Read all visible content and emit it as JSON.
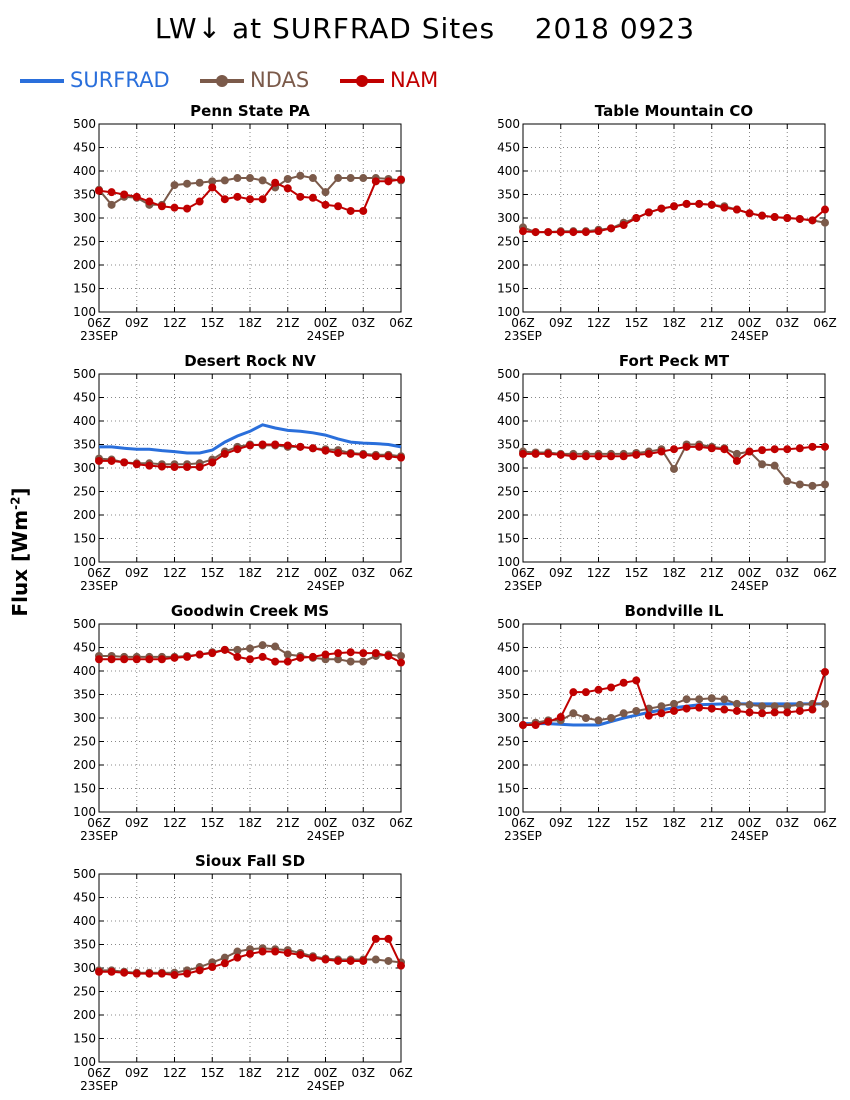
{
  "header": {
    "title": "LW↓ at SURFRAD Sites    2018 0923",
    "ylabel": "Flux [Wm",
    "ylabel_exp": "-2",
    "ylabel_close": "]"
  },
  "legend": [
    {
      "name": "SURFRAD",
      "color": "#2a6fdb"
    },
    {
      "name": "NDAS",
      "color": "#7b5a4a"
    },
    {
      "name": "NAM",
      "color": "#c00000"
    }
  ],
  "axes": {
    "yticks": [
      "100",
      "150",
      "200",
      "250",
      "300",
      "350",
      "400",
      "450",
      "500"
    ],
    "xticks": [
      "06Z",
      "09Z",
      "12Z",
      "15Z",
      "18Z",
      "21Z",
      "00Z",
      "03Z",
      "06Z"
    ],
    "xsublabels": [
      {
        "text": "23SEP",
        "tick": 0
      },
      {
        "text": "24SEP",
        "tick": 6
      }
    ]
  },
  "chart_data": [
    {
      "type": "line",
      "title": "Penn State PA",
      "ylim": [
        100,
        500
      ],
      "xlim": [
        0,
        24
      ],
      "grid": true,
      "series": [
        {
          "name": "NDAS",
          "x": [
            0,
            1,
            2,
            3,
            4,
            5,
            6,
            7,
            8,
            9,
            10,
            11,
            12,
            13,
            14,
            15,
            16,
            17,
            18,
            19,
            20,
            21,
            22,
            23,
            24
          ],
          "values": [
            360,
            328,
            345,
            343,
            328,
            328,
            370,
            373,
            375,
            378,
            380,
            385,
            385,
            380,
            365,
            383,
            390,
            385,
            355,
            385,
            385,
            385,
            385,
            383,
            380
          ]
        },
        {
          "name": "NAM",
          "x": [
            0,
            1,
            2,
            3,
            4,
            5,
            6,
            7,
            8,
            9,
            10,
            11,
            12,
            13,
            14,
            15,
            16,
            17,
            18,
            19,
            20,
            21,
            22,
            23,
            24
          ],
          "values": [
            358,
            355,
            350,
            345,
            335,
            325,
            322,
            320,
            335,
            365,
            340,
            345,
            340,
            340,
            375,
            363,
            345,
            343,
            328,
            325,
            315,
            315,
            378,
            378,
            382
          ]
        }
      ]
    },
    {
      "type": "line",
      "title": "Table Mountain CO",
      "ylim": [
        100,
        500
      ],
      "xlim": [
        0,
        24
      ],
      "grid": true,
      "series": [
        {
          "name": "NDAS",
          "x": [
            0,
            1,
            2,
            3,
            4,
            5,
            6,
            7,
            8,
            9,
            10,
            11,
            12,
            13,
            14,
            15,
            16,
            17,
            18,
            19,
            20,
            21,
            22,
            23,
            24
          ],
          "values": [
            280,
            270,
            270,
            272,
            272,
            272,
            275,
            278,
            290,
            300,
            312,
            320,
            325,
            330,
            330,
            328,
            325,
            318,
            310,
            305,
            302,
            300,
            298,
            295,
            290
          ]
        },
        {
          "name": "NAM",
          "x": [
            0,
            1,
            2,
            3,
            4,
            5,
            6,
            7,
            8,
            9,
            10,
            11,
            12,
            13,
            14,
            15,
            16,
            17,
            18,
            19,
            20,
            21,
            22,
            23,
            24
          ],
          "values": [
            272,
            270,
            270,
            270,
            270,
            270,
            272,
            278,
            285,
            300,
            312,
            320,
            325,
            330,
            330,
            328,
            322,
            318,
            310,
            305,
            302,
            300,
            298,
            295,
            318
          ]
        }
      ]
    },
    {
      "type": "line",
      "title": "Desert Rock NV",
      "ylim": [
        100,
        500
      ],
      "xlim": [
        0,
        24
      ],
      "grid": true,
      "series": [
        {
          "name": "SURFRAD",
          "x": [
            0,
            1,
            2,
            3,
            4,
            5,
            6,
            7,
            8,
            9,
            10,
            11,
            12,
            13,
            14,
            15,
            16,
            17,
            18,
            19,
            20,
            21,
            22,
            23,
            24
          ],
          "values": [
            345,
            345,
            342,
            340,
            340,
            337,
            335,
            332,
            332,
            338,
            355,
            368,
            378,
            392,
            385,
            380,
            378,
            375,
            370,
            362,
            355,
            353,
            352,
            350,
            345
          ]
        },
        {
          "name": "NDAS",
          "x": [
            0,
            1,
            2,
            3,
            4,
            5,
            6,
            7,
            8,
            9,
            10,
            11,
            12,
            13,
            14,
            15,
            16,
            17,
            18,
            19,
            20,
            21,
            22,
            23,
            24
          ],
          "values": [
            320,
            318,
            312,
            310,
            310,
            308,
            308,
            308,
            310,
            318,
            335,
            345,
            350,
            348,
            348,
            345,
            345,
            342,
            340,
            338,
            332,
            330,
            328,
            328,
            325
          ]
        },
        {
          "name": "NAM",
          "x": [
            0,
            1,
            2,
            3,
            4,
            5,
            6,
            7,
            8,
            9,
            10,
            11,
            12,
            13,
            14,
            15,
            16,
            17,
            18,
            19,
            20,
            21,
            22,
            23,
            24
          ],
          "values": [
            315,
            315,
            312,
            308,
            305,
            303,
            302,
            302,
            302,
            312,
            330,
            340,
            348,
            350,
            350,
            348,
            345,
            342,
            337,
            332,
            330,
            328,
            325,
            325,
            322
          ]
        }
      ]
    },
    {
      "type": "line",
      "title": "Fort Peck MT",
      "ylim": [
        100,
        500
      ],
      "xlim": [
        0,
        24
      ],
      "grid": true,
      "series": [
        {
          "name": "NDAS",
          "x": [
            0,
            1,
            2,
            3,
            4,
            5,
            6,
            7,
            8,
            9,
            10,
            11,
            12,
            13,
            14,
            15,
            16,
            17,
            18,
            19,
            20,
            21,
            22,
            23,
            24
          ],
          "values": [
            335,
            333,
            333,
            330,
            330,
            330,
            330,
            330,
            330,
            332,
            335,
            340,
            298,
            350,
            350,
            345,
            342,
            330,
            335,
            308,
            305,
            272,
            265,
            262,
            265
          ]
        },
        {
          "name": "NAM",
          "x": [
            0,
            1,
            2,
            3,
            4,
            5,
            6,
            7,
            8,
            9,
            10,
            11,
            12,
            13,
            14,
            15,
            16,
            17,
            18,
            19,
            20,
            21,
            22,
            23,
            24
          ],
          "values": [
            330,
            330,
            330,
            328,
            325,
            325,
            325,
            325,
            325,
            328,
            330,
            335,
            340,
            345,
            345,
            342,
            340,
            315,
            335,
            338,
            340,
            340,
            342,
            345,
            345
          ]
        }
      ]
    },
    {
      "type": "line",
      "title": "Goodwin Creek MS",
      "ylim": [
        100,
        500
      ],
      "xlim": [
        0,
        24
      ],
      "grid": true,
      "series": [
        {
          "name": "NDAS",
          "x": [
            0,
            1,
            2,
            3,
            4,
            5,
            6,
            7,
            8,
            9,
            10,
            11,
            12,
            13,
            14,
            15,
            16,
            17,
            18,
            19,
            20,
            21,
            22,
            23,
            24
          ],
          "values": [
            432,
            432,
            430,
            430,
            430,
            430,
            430,
            432,
            435,
            440,
            445,
            445,
            448,
            455,
            452,
            435,
            432,
            428,
            425,
            425,
            420,
            420,
            432,
            435,
            432
          ]
        },
        {
          "name": "NAM",
          "x": [
            0,
            1,
            2,
            3,
            4,
            5,
            6,
            7,
            8,
            9,
            10,
            11,
            12,
            13,
            14,
            15,
            16,
            17,
            18,
            19,
            20,
            21,
            22,
            23,
            24
          ],
          "values": [
            425,
            425,
            425,
            425,
            425,
            425,
            428,
            430,
            435,
            438,
            445,
            430,
            425,
            430,
            420,
            420,
            428,
            430,
            435,
            438,
            440,
            438,
            438,
            432,
            418
          ]
        }
      ]
    },
    {
      "type": "line",
      "title": "Bondville IL",
      "ylim": [
        100,
        500
      ],
      "xlim": [
        0,
        24
      ],
      "grid": true,
      "series": [
        {
          "name": "SURFRAD",
          "x": [
            0,
            2,
            4,
            6,
            8,
            10,
            12,
            14,
            16,
            18,
            20,
            22,
            24
          ],
          "values": [
            288,
            288,
            285,
            285,
            300,
            312,
            322,
            328,
            330,
            330,
            330,
            330,
            330
          ]
        },
        {
          "name": "NDAS",
          "x": [
            0,
            1,
            2,
            3,
            4,
            5,
            6,
            7,
            8,
            9,
            10,
            11,
            12,
            13,
            14,
            15,
            16,
            17,
            18,
            19,
            20,
            21,
            22,
            23,
            24
          ],
          "values": [
            285,
            290,
            295,
            295,
            310,
            300,
            295,
            300,
            310,
            315,
            320,
            325,
            330,
            340,
            340,
            342,
            340,
            330,
            328,
            325,
            325,
            325,
            328,
            330,
            330
          ]
        },
        {
          "name": "NAM",
          "x": [
            0,
            1,
            2,
            3,
            4,
            5,
            6,
            7,
            8,
            9,
            10,
            11,
            12,
            13,
            14,
            15,
            16,
            17,
            18,
            19,
            20,
            21,
            22,
            23,
            24
          ],
          "values": [
            285,
            285,
            292,
            302,
            355,
            355,
            360,
            365,
            375,
            380,
            305,
            310,
            315,
            320,
            322,
            320,
            318,
            315,
            312,
            310,
            312,
            312,
            315,
            318,
            398
          ]
        }
      ]
    },
    {
      "type": "line",
      "title": "Sioux Fall SD",
      "ylim": [
        100,
        500
      ],
      "xlim": [
        0,
        24
      ],
      "grid": true,
      "series": [
        {
          "name": "NDAS",
          "x": [
            0,
            1,
            2,
            3,
            4,
            5,
            6,
            7,
            8,
            9,
            10,
            11,
            12,
            13,
            14,
            15,
            16,
            17,
            18,
            19,
            20,
            21,
            22,
            23,
            24
          ],
          "values": [
            295,
            295,
            292,
            290,
            290,
            290,
            290,
            295,
            302,
            312,
            322,
            335,
            340,
            342,
            340,
            338,
            332,
            325,
            320,
            318,
            318,
            318,
            318,
            315,
            312
          ]
        },
        {
          "name": "NAM",
          "x": [
            0,
            1,
            2,
            3,
            4,
            5,
            6,
            7,
            8,
            9,
            10,
            11,
            12,
            13,
            14,
            15,
            16,
            17,
            18,
            19,
            20,
            21,
            22,
            23,
            24
          ],
          "values": [
            292,
            292,
            290,
            288,
            288,
            288,
            285,
            288,
            295,
            302,
            310,
            322,
            330,
            335,
            335,
            332,
            328,
            322,
            318,
            315,
            315,
            315,
            362,
            362,
            305
          ]
        }
      ]
    }
  ]
}
